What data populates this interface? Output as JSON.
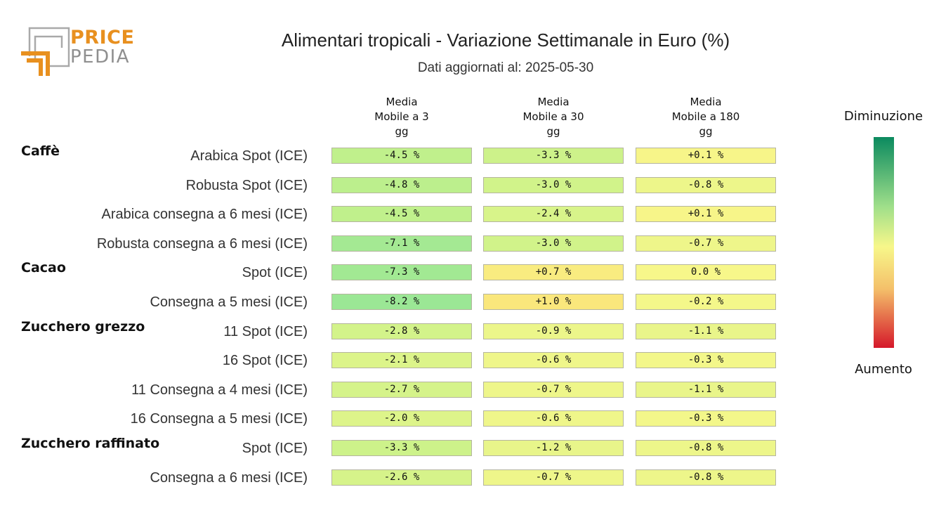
{
  "logo": {
    "line1": "PRICE",
    "line2": "PEDIA"
  },
  "title": "Alimentari tropicali - Variazione Settimanale in Euro (%)",
  "subtitle": "Dati aggiornati al: 2025-05-30",
  "legend": {
    "top": "Diminuzione",
    "bottom": "Aumento"
  },
  "colors": {
    "strong_decrease": "#0b8a5f",
    "neutral": "#f7f78a",
    "strong_increase": "#d5182a"
  },
  "chart_data": {
    "type": "heatmap",
    "title": "Alimentari tropicali - Variazione Settimanale in Euro (%)",
    "columns": [
      [
        "Media",
        "Mobile a 3",
        "gg"
      ],
      [
        "Media",
        "Mobile a 30",
        "gg"
      ],
      [
        "Media",
        "Mobile a 180",
        "gg"
      ]
    ],
    "groups": [
      {
        "name": "Caffè",
        "rows": [
          {
            "label": "Arabica Spot (ICE)",
            "values": [
              "-4.5 %",
              "-3.3 %",
              "+0.1 %"
            ],
            "nums": [
              -4.5,
              -3.3,
              0.1
            ]
          },
          {
            "label": "Robusta Spot (ICE)",
            "values": [
              "-4.8 %",
              "-3.0 %",
              "-0.8 %"
            ],
            "nums": [
              -4.8,
              -3.0,
              -0.8
            ]
          },
          {
            "label": "Arabica consegna a 6 mesi (ICE)",
            "values": [
              "-4.5 %",
              "-2.4 %",
              "+0.1 %"
            ],
            "nums": [
              -4.5,
              -2.4,
              0.1
            ]
          },
          {
            "label": "Robusta consegna a 6 mesi (ICE)",
            "values": [
              "-7.1 %",
              "-3.0 %",
              "-0.7 %"
            ],
            "nums": [
              -7.1,
              -3.0,
              -0.7
            ]
          }
        ]
      },
      {
        "name": "Cacao",
        "rows": [
          {
            "label": "Spot (ICE)",
            "values": [
              "-7.3 %",
              "+0.7 %",
              "0.0 %"
            ],
            "nums": [
              -7.3,
              0.7,
              0.0
            ]
          },
          {
            "label": "Consegna a 5 mesi (ICE)",
            "values": [
              "-8.2 %",
              "+1.0 %",
              "-0.2 %"
            ],
            "nums": [
              -8.2,
              1.0,
              -0.2
            ]
          }
        ]
      },
      {
        "name": "Zucchero grezzo",
        "rows": [
          {
            "label": "11 Spot (ICE)",
            "values": [
              "-2.8 %",
              "-0.9 %",
              "-1.1 %"
            ],
            "nums": [
              -2.8,
              -0.9,
              -1.1
            ]
          },
          {
            "label": "16 Spot (ICE)",
            "values": [
              "-2.1 %",
              "-0.6 %",
              "-0.3 %"
            ],
            "nums": [
              -2.1,
              -0.6,
              -0.3
            ]
          },
          {
            "label": "11 Consegna a 4 mesi (ICE)",
            "values": [
              "-2.7 %",
              "-0.7 %",
              "-1.1 %"
            ],
            "nums": [
              -2.7,
              -0.7,
              -1.1
            ]
          },
          {
            "label": "16 Consegna a 5 mesi (ICE)",
            "values": [
              "-2.0 %",
              "-0.6 %",
              "-0.3 %"
            ],
            "nums": [
              -2.0,
              -0.6,
              -0.3
            ]
          }
        ]
      },
      {
        "name": "Zucchero raffinato",
        "rows": [
          {
            "label": "Spot (ICE)",
            "values": [
              "-3.3 %",
              "-1.2 %",
              "-0.8 %"
            ],
            "nums": [
              -3.3,
              -1.2,
              -0.8
            ]
          },
          {
            "label": "Consegna a 6 mesi (ICE)",
            "values": [
              "-2.6 %",
              "-0.7 %",
              "-0.8 %"
            ],
            "nums": [
              -2.6,
              -0.7,
              -0.8
            ]
          }
        ]
      }
    ]
  }
}
